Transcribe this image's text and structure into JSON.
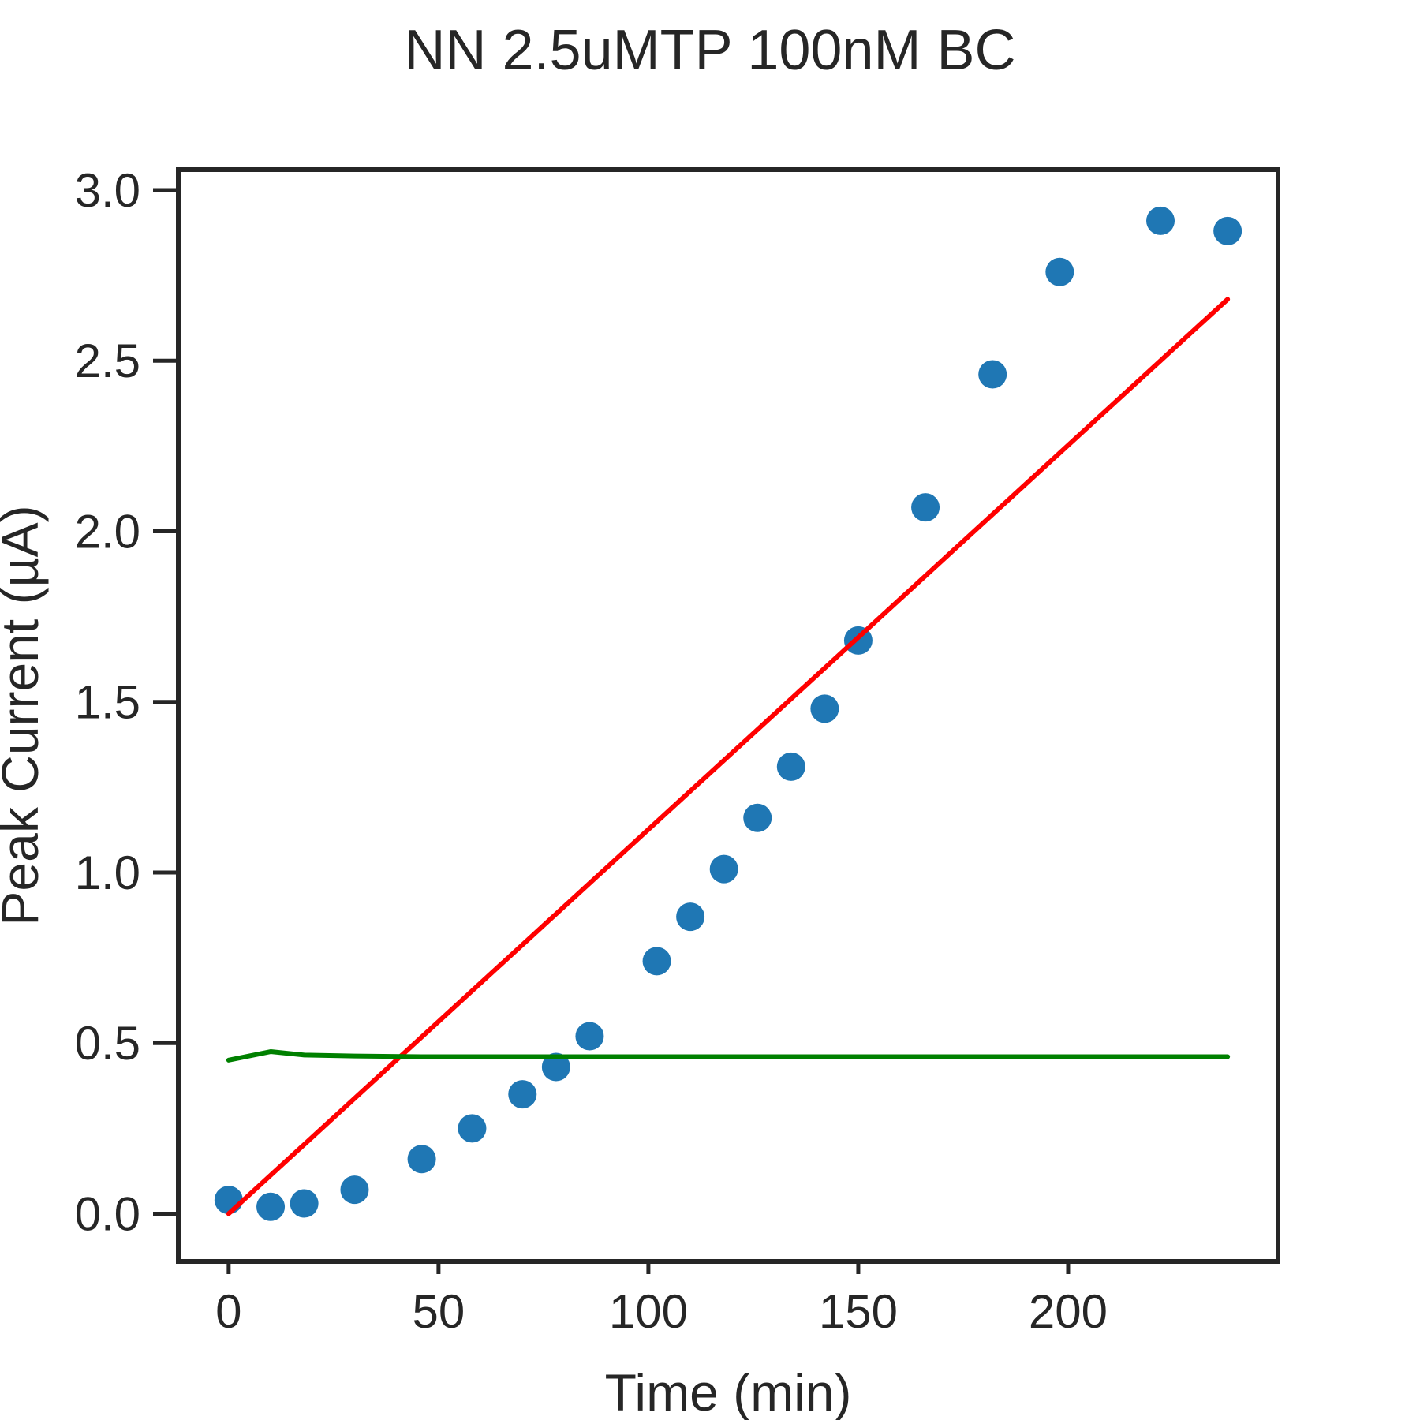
{
  "chart_data": {
    "type": "scatter",
    "title": "NN 2.5uMTP 100nM BC",
    "xlabel": "Time (min)",
    "ylabel": "Peak Current (µA)",
    "xlim": [
      -12,
      250
    ],
    "ylim": [
      -0.14,
      3.06
    ],
    "xticks": [
      0,
      50,
      100,
      150,
      200
    ],
    "xtick_labels": [
      "0",
      "50",
      "100",
      "150",
      "200"
    ],
    "yticks": [
      0.0,
      0.5,
      1.0,
      1.5,
      2.0,
      2.5,
      3.0
    ],
    "ytick_labels": [
      "0.0",
      "0.5",
      "1.0",
      "1.5",
      "2.0",
      "2.5",
      "3.0"
    ],
    "grid": false,
    "legend": false,
    "series": [
      {
        "kind": "scatter",
        "color": "#1f77b4",
        "x": [
          0,
          10,
          18,
          30,
          46,
          58,
          70,
          78,
          86,
          102,
          110,
          118,
          126,
          134,
          142,
          150,
          166,
          182,
          198,
          222,
          238
        ],
        "y": [
          0.04,
          0.02,
          0.03,
          0.07,
          0.16,
          0.25,
          0.35,
          0.43,
          0.52,
          0.74,
          0.87,
          1.01,
          1.16,
          1.31,
          1.48,
          1.68,
          2.07,
          2.46,
          2.76,
          2.91,
          2.88
        ]
      },
      {
        "kind": "line",
        "color": "#ff0000",
        "x": [
          0,
          238
        ],
        "y": [
          0.0,
          2.68
        ]
      },
      {
        "kind": "line",
        "color": "#008000",
        "x": [
          0,
          10,
          18,
          30,
          46,
          238
        ],
        "y": [
          0.45,
          0.475,
          0.465,
          0.462,
          0.46,
          0.46
        ]
      }
    ]
  }
}
